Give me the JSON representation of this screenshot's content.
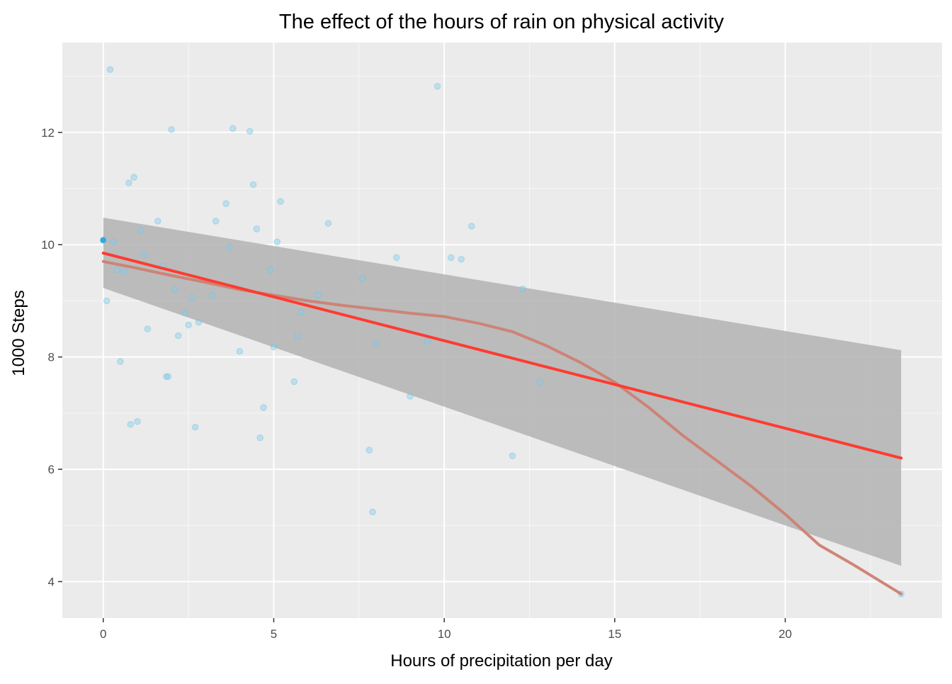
{
  "chart_data": {
    "type": "scatter",
    "title": "The effect of the hours of rain on physical activity",
    "xlabel": "Hours of precipitation per day",
    "ylabel": "1000 Steps",
    "xlim": [
      -1.2,
      24.6
    ],
    "ylim": [
      3.35,
      13.6
    ],
    "x_ticks": [
      0,
      5,
      10,
      15,
      20
    ],
    "x_tick_labels": [
      "0",
      "5",
      "10",
      "15",
      "20"
    ],
    "y_ticks": [
      4,
      6,
      8,
      10,
      12
    ],
    "y_tick_labels": [
      "4",
      "6",
      "8",
      "10",
      "12"
    ],
    "grid": true,
    "legend": "none",
    "colors": {
      "panel_background": "#ebebeb",
      "grid": "#ffffff",
      "points": "#87ceeb",
      "points_stroke": "#6ec1e4",
      "highlight_point": "#29a9e0",
      "linear_fit": "#ff3b30",
      "loess_fit": "#cd7f72",
      "confidence_band": "#b3b3b3"
    },
    "points": [
      {
        "x": 0.0,
        "y": 10.08
      },
      {
        "x": 0.0,
        "y": 10.08
      },
      {
        "x": 0.1,
        "y": 9.0
      },
      {
        "x": 0.2,
        "y": 13.12
      },
      {
        "x": 0.3,
        "y": 10.05
      },
      {
        "x": 0.4,
        "y": 9.55
      },
      {
        "x": 0.5,
        "y": 7.92
      },
      {
        "x": 0.6,
        "y": 9.52
      },
      {
        "x": 0.75,
        "y": 11.1
      },
      {
        "x": 0.8,
        "y": 6.8
      },
      {
        "x": 0.9,
        "y": 11.2
      },
      {
        "x": 1.0,
        "y": 6.85
      },
      {
        "x": 1.1,
        "y": 10.25
      },
      {
        "x": 1.2,
        "y": 9.82
      },
      {
        "x": 1.3,
        "y": 8.5
      },
      {
        "x": 1.6,
        "y": 10.42
      },
      {
        "x": 1.75,
        "y": 9.62
      },
      {
        "x": 1.85,
        "y": 7.65
      },
      {
        "x": 1.9,
        "y": 7.65
      },
      {
        "x": 2.0,
        "y": 12.05
      },
      {
        "x": 2.1,
        "y": 9.2
      },
      {
        "x": 2.2,
        "y": 8.38
      },
      {
        "x": 2.4,
        "y": 8.78
      },
      {
        "x": 2.5,
        "y": 8.57
      },
      {
        "x": 2.6,
        "y": 9.05
      },
      {
        "x": 2.7,
        "y": 6.75
      },
      {
        "x": 2.8,
        "y": 8.62
      },
      {
        "x": 3.2,
        "y": 9.1
      },
      {
        "x": 3.3,
        "y": 10.42
      },
      {
        "x": 3.6,
        "y": 10.73
      },
      {
        "x": 3.7,
        "y": 9.95
      },
      {
        "x": 3.8,
        "y": 12.07
      },
      {
        "x": 4.0,
        "y": 8.1
      },
      {
        "x": 4.3,
        "y": 12.02
      },
      {
        "x": 4.4,
        "y": 11.07
      },
      {
        "x": 4.5,
        "y": 10.28
      },
      {
        "x": 4.6,
        "y": 6.56
      },
      {
        "x": 4.7,
        "y": 7.1
      },
      {
        "x": 4.9,
        "y": 9.55
      },
      {
        "x": 5.0,
        "y": 8.18
      },
      {
        "x": 5.1,
        "y": 10.05
      },
      {
        "x": 5.2,
        "y": 10.77
      },
      {
        "x": 5.6,
        "y": 7.56
      },
      {
        "x": 5.7,
        "y": 8.37
      },
      {
        "x": 5.8,
        "y": 8.8
      },
      {
        "x": 6.3,
        "y": 9.1
      },
      {
        "x": 6.6,
        "y": 10.38
      },
      {
        "x": 7.6,
        "y": 9.4
      },
      {
        "x": 7.8,
        "y": 6.34
      },
      {
        "x": 7.9,
        "y": 5.24
      },
      {
        "x": 8.0,
        "y": 8.24
      },
      {
        "x": 8.6,
        "y": 9.77
      },
      {
        "x": 9.0,
        "y": 7.3
      },
      {
        "x": 9.5,
        "y": 8.28
      },
      {
        "x": 9.8,
        "y": 12.82
      },
      {
        "x": 10.2,
        "y": 9.77
      },
      {
        "x": 10.5,
        "y": 9.74
      },
      {
        "x": 10.8,
        "y": 10.33
      },
      {
        "x": 12.0,
        "y": 6.24
      },
      {
        "x": 12.3,
        "y": 9.21
      },
      {
        "x": 12.8,
        "y": 7.55
      },
      {
        "x": 23.4,
        "y": 3.78
      }
    ],
    "series": [
      {
        "kind": "linear-fit",
        "x": [
          0,
          23.4
        ],
        "y": [
          9.85,
          6.2
        ]
      },
      {
        "kind": "loess-fit",
        "x": [
          0,
          1,
          2,
          3,
          4,
          5,
          6,
          7,
          8,
          9,
          10,
          11,
          12,
          13,
          14,
          15,
          16,
          17,
          18,
          19,
          20,
          21,
          22,
          23.4
        ],
        "y": [
          9.7,
          9.58,
          9.45,
          9.33,
          9.2,
          9.1,
          9.0,
          8.92,
          8.85,
          8.78,
          8.72,
          8.6,
          8.45,
          8.2,
          7.9,
          7.55,
          7.1,
          6.6,
          6.15,
          5.7,
          5.2,
          4.65,
          4.3,
          3.78
        ]
      },
      {
        "kind": "confidence-band",
        "x": [
          0,
          23.4
        ],
        "lower": [
          9.23,
          4.28
        ],
        "upper": [
          10.48,
          8.12
        ]
      }
    ]
  }
}
